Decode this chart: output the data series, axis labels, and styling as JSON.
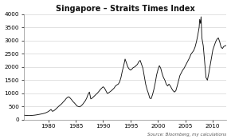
{
  "title": "Singapore – Straits Times Index",
  "source_text": "Source: Bloomberg, my calculations",
  "xlim": [
    1975.5,
    2012.5
  ],
  "ylim": [
    0,
    4000
  ],
  "yticks": [
    0,
    500,
    1000,
    1500,
    2000,
    2500,
    3000,
    3500,
    4000
  ],
  "xticks": [
    1980,
    1985,
    1990,
    1995,
    2000,
    2005,
    2010
  ],
  "background_color": "#ffffff",
  "plot_bg_color": "#ffffff",
  "line_color": "#111111",
  "grid_color": "#cccccc",
  "data": [
    [
      1975.5,
      175
    ],
    [
      1976.0,
      165
    ],
    [
      1976.5,
      160
    ],
    [
      1977.0,
      165
    ],
    [
      1977.5,
      175
    ],
    [
      1978.0,
      190
    ],
    [
      1978.5,
      210
    ],
    [
      1979.0,
      230
    ],
    [
      1979.5,
      260
    ],
    [
      1980.0,
      310
    ],
    [
      1980.25,
      350
    ],
    [
      1980.5,
      390
    ],
    [
      1980.75,
      320
    ],
    [
      1981.0,
      340
    ],
    [
      1981.25,
      380
    ],
    [
      1981.5,
      430
    ],
    [
      1981.75,
      480
    ],
    [
      1982.0,
      530
    ],
    [
      1982.25,
      570
    ],
    [
      1982.5,
      620
    ],
    [
      1982.75,
      680
    ],
    [
      1983.0,
      730
    ],
    [
      1983.25,
      800
    ],
    [
      1983.5,
      850
    ],
    [
      1983.75,
      870
    ],
    [
      1984.0,
      820
    ],
    [
      1984.25,
      760
    ],
    [
      1984.5,
      690
    ],
    [
      1984.75,
      640
    ],
    [
      1985.0,
      580
    ],
    [
      1985.25,
      520
    ],
    [
      1985.5,
      500
    ],
    [
      1985.75,
      490
    ],
    [
      1986.0,
      530
    ],
    [
      1986.25,
      580
    ],
    [
      1986.5,
      650
    ],
    [
      1986.75,
      720
    ],
    [
      1987.0,
      820
    ],
    [
      1987.25,
      960
    ],
    [
      1987.5,
      1050
    ],
    [
      1987.75,
      790
    ],
    [
      1988.0,
      820
    ],
    [
      1988.25,
      870
    ],
    [
      1988.5,
      920
    ],
    [
      1988.75,
      970
    ],
    [
      1989.0,
      1020
    ],
    [
      1989.25,
      1080
    ],
    [
      1989.5,
      1150
    ],
    [
      1989.75,
      1200
    ],
    [
      1990.0,
      1250
    ],
    [
      1990.25,
      1200
    ],
    [
      1990.5,
      1100
    ],
    [
      1990.75,
      1000
    ],
    [
      1991.0,
      1020
    ],
    [
      1991.25,
      1060
    ],
    [
      1991.5,
      1100
    ],
    [
      1991.75,
      1150
    ],
    [
      1992.0,
      1200
    ],
    [
      1992.25,
      1280
    ],
    [
      1992.5,
      1320
    ],
    [
      1992.75,
      1350
    ],
    [
      1993.0,
      1430
    ],
    [
      1993.25,
      1600
    ],
    [
      1993.5,
      1850
    ],
    [
      1993.75,
      2050
    ],
    [
      1994.0,
      2300
    ],
    [
      1994.25,
      2150
    ],
    [
      1994.5,
      2000
    ],
    [
      1994.75,
      1920
    ],
    [
      1995.0,
      1880
    ],
    [
      1995.25,
      1920
    ],
    [
      1995.5,
      1980
    ],
    [
      1995.75,
      2000
    ],
    [
      1996.0,
      2050
    ],
    [
      1996.25,
      2100
    ],
    [
      1996.5,
      2200
    ],
    [
      1996.75,
      2250
    ],
    [
      1997.0,
      2100
    ],
    [
      1997.25,
      1950
    ],
    [
      1997.5,
      1650
    ],
    [
      1997.75,
      1350
    ],
    [
      1998.0,
      1150
    ],
    [
      1998.25,
      1000
    ],
    [
      1998.5,
      820
    ],
    [
      1998.75,
      800
    ],
    [
      1999.0,
      950
    ],
    [
      1999.25,
      1150
    ],
    [
      1999.5,
      1400
    ],
    [
      1999.75,
      1700
    ],
    [
      2000.0,
      1900
    ],
    [
      2000.25,
      2050
    ],
    [
      2000.5,
      1950
    ],
    [
      2000.75,
      1750
    ],
    [
      2001.0,
      1600
    ],
    [
      2001.25,
      1500
    ],
    [
      2001.5,
      1350
    ],
    [
      2001.75,
      1280
    ],
    [
      2002.0,
      1350
    ],
    [
      2002.25,
      1280
    ],
    [
      2002.5,
      1180
    ],
    [
      2002.75,
      1100
    ],
    [
      2003.0,
      1050
    ],
    [
      2003.25,
      1100
    ],
    [
      2003.5,
      1280
    ],
    [
      2003.75,
      1480
    ],
    [
      2004.0,
      1680
    ],
    [
      2004.25,
      1780
    ],
    [
      2004.5,
      1880
    ],
    [
      2004.75,
      1950
    ],
    [
      2005.0,
      2050
    ],
    [
      2005.25,
      2150
    ],
    [
      2005.5,
      2250
    ],
    [
      2005.75,
      2350
    ],
    [
      2006.0,
      2480
    ],
    [
      2006.25,
      2550
    ],
    [
      2006.5,
      2620
    ],
    [
      2006.75,
      2750
    ],
    [
      2007.0,
      2950
    ],
    [
      2007.25,
      3200
    ],
    [
      2007.5,
      3500
    ],
    [
      2007.6,
      3800
    ],
    [
      2007.75,
      3650
    ],
    [
      2007.85,
      3900
    ],
    [
      2008.0,
      3100
    ],
    [
      2008.25,
      2800
    ],
    [
      2008.5,
      2200
    ],
    [
      2008.75,
      1600
    ],
    [
      2009.0,
      1500
    ],
    [
      2009.25,
      1750
    ],
    [
      2009.5,
      2050
    ],
    [
      2009.75,
      2350
    ],
    [
      2010.0,
      2650
    ],
    [
      2010.25,
      2800
    ],
    [
      2010.5,
      2950
    ],
    [
      2010.75,
      3050
    ],
    [
      2011.0,
      3100
    ],
    [
      2011.25,
      2950
    ],
    [
      2011.5,
      2750
    ],
    [
      2011.75,
      2700
    ],
    [
      2012.0,
      2780
    ],
    [
      2012.5,
      2820
    ]
  ]
}
